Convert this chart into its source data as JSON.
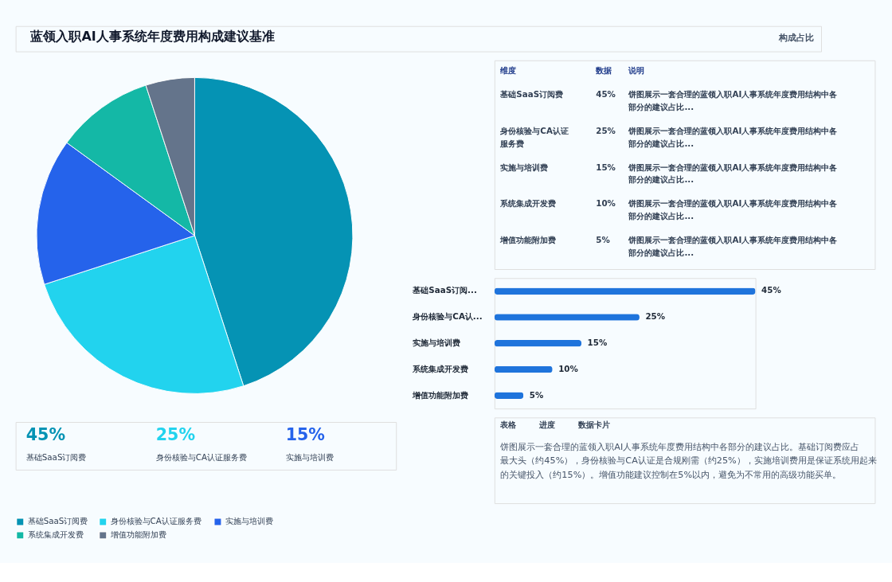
{
  "chart_data": [
    {
      "type": "pie",
      "title": "蓝领入职AI人事系统年度费用构成建议基准",
      "annotations": [
        "构成占比"
      ],
      "categories": [
        "基础SaaS订阅费",
        "身份核验与CA认证服务费",
        "实施与培训费",
        "系统集成开发费",
        "增值功能附加费"
      ],
      "values": [
        45,
        25,
        15,
        10,
        5
      ],
      "colors": [
        "#0593b4",
        "#22d3ee",
        "#2563eb",
        "#14b8a6",
        "#64748b"
      ],
      "legend": "bottom"
    },
    {
      "type": "other",
      "annotations": [
        "维度",
        "数据",
        "说明",
        "基础SaaS订阅费",
        "45%",
        "饼图展示一套合理的蓝领入职AI人事系统年度费用结构中各部分的建议占比...",
        "身份核验与CA认证服务费",
        "25%",
        "饼图展示一套合理的蓝领入职AI人事系统年度费用结构中各部分的建议占比...",
        "实施与培训费",
        "15%",
        "饼图展示一套合理的蓝领入职AI人事系统年度费用结构中各部分的建议占比...",
        "系统集成开发费",
        "10%",
        "饼图展示一套合理的蓝领入职AI人事系统年度费用结构中各部分的建议占比...",
        "增值功能附加费",
        "5%",
        "饼图展示一套合理的蓝领入职AI人事系统年度费用结构中各部分的建议占比..."
      ]
    },
    {
      "type": "bar",
      "orientation": "horizontal",
      "categories": [
        "基础SaaS订阅...",
        "身份核验与CA认...",
        "实施与培训费",
        "系统集成开发费",
        "增值功能附加费"
      ],
      "values": [
        45,
        25,
        15,
        10,
        5
      ],
      "value_labels": [
        "45%",
        "25%",
        "15%",
        "10%",
        "5%"
      ],
      "color": "#1f74dc"
    },
    {
      "type": "other",
      "annotations": [
        "表格",
        "进度",
        "数据卡片",
        "饼图展示一套合理的蓝领入职AI人事系统年度费用结构中各部分的建议占比。基础订阅费应占最大头（约45%），身份核验与CA认证是合规刚需（约25%），实施培训费用是保证系统用起来的关键投入（约15%）。增值功能建议控制在5%以内，避免为不常用的高级功能买单。"
      ]
    },
    {
      "type": "other",
      "annotations": [
        "45%",
        "基础SaaS订阅费",
        "25%",
        "身份核验与CA认证服务费",
        "15%",
        "实施与培训费"
      ],
      "colors": [
        "#0593b4",
        "#22d3ee",
        "#2563eb"
      ]
    }
  ]
}
